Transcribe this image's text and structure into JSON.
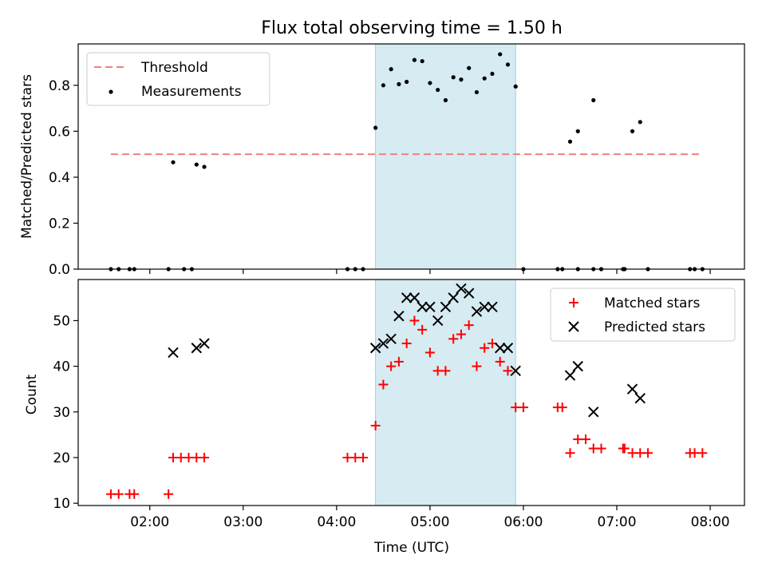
{
  "title": "Flux total observing time = 1.50 h",
  "chart_data": [
    {
      "type": "scatter",
      "ylabel": "Matched/Predicted stars",
      "xlabel": "",
      "xlim": [
        "01:14",
        "08:22"
      ],
      "ylim": [
        0,
        0.98
      ],
      "yticks": [
        "0.0",
        "0.2",
        "0.4",
        "0.6",
        "0.8"
      ],
      "highlight_span": [
        "04:25",
        "05:55"
      ],
      "threshold": {
        "name": "Threshold",
        "value": 0.5,
        "x_range": [
          "01:35",
          "07:55"
        ],
        "color": "#f08080"
      },
      "legend": [
        "Threshold",
        "Measurements"
      ],
      "legend_position": "top-left",
      "series": [
        {
          "name": "Measurements",
          "color": "#000000",
          "points": [
            [
              "01:35",
              0
            ],
            [
              "01:40",
              0
            ],
            [
              "01:47",
              0
            ],
            [
              "01:50",
              0
            ],
            [
              "02:12",
              0
            ],
            [
              "02:22",
              0
            ],
            [
              "02:27",
              0
            ],
            [
              "02:15",
              0.465
            ],
            [
              "02:30",
              0.455
            ],
            [
              "02:35",
              0.445
            ],
            [
              "04:07",
              0
            ],
            [
              "04:12",
              0
            ],
            [
              "04:17",
              0
            ],
            [
              "04:25",
              0.615
            ],
            [
              "04:30",
              0.8
            ],
            [
              "04:35",
              0.87
            ],
            [
              "04:40",
              0.805
            ],
            [
              "04:45",
              0.815
            ],
            [
              "04:50",
              0.91
            ],
            [
              "04:55",
              0.905
            ],
            [
              "05:00",
              0.81
            ],
            [
              "05:05",
              0.78
            ],
            [
              "05:10",
              0.735
            ],
            [
              "05:15",
              0.835
            ],
            [
              "05:20",
              0.825
            ],
            [
              "05:25",
              0.875
            ],
            [
              "05:30",
              0.77
            ],
            [
              "05:35",
              0.83
            ],
            [
              "05:40",
              0.85
            ],
            [
              "05:45",
              0.935
            ],
            [
              "05:50",
              0.89
            ],
            [
              "05:55",
              0.795
            ],
            [
              "06:00",
              0
            ],
            [
              "06:22",
              0
            ],
            [
              "06:25",
              0
            ],
            [
              "06:35",
              0
            ],
            [
              "06:45",
              0
            ],
            [
              "06:50",
              0
            ],
            [
              "07:04",
              0
            ],
            [
              "07:05",
              0
            ],
            [
              "07:20",
              0
            ],
            [
              "06:30",
              0.555
            ],
            [
              "06:35",
              0.6
            ],
            [
              "06:45",
              0.735
            ],
            [
              "07:10",
              0.6
            ],
            [
              "07:15",
              0.64
            ],
            [
              "07:47",
              0
            ],
            [
              "07:50",
              0
            ],
            [
              "07:55",
              0
            ]
          ]
        }
      ]
    },
    {
      "type": "scatter",
      "ylabel": "Count",
      "xlabel": "Time (UTC)",
      "xlim": [
        "01:14",
        "08:22"
      ],
      "ylim": [
        9.5,
        59
      ],
      "yticks": [
        "10",
        "20",
        "30",
        "40",
        "50"
      ],
      "xticks": [
        "02:00",
        "03:00",
        "04:00",
        "05:00",
        "06:00",
        "07:00",
        "08:00"
      ],
      "highlight_span": [
        "04:25",
        "05:55"
      ],
      "legend": [
        "Matched stars",
        "Predicted stars"
      ],
      "legend_position": "top-right",
      "series": [
        {
          "name": "Matched stars",
          "marker": "plus",
          "color": "#ff0000",
          "points": [
            [
              "01:35",
              12
            ],
            [
              "01:40",
              12
            ],
            [
              "01:47",
              12
            ],
            [
              "01:50",
              12
            ],
            [
              "02:12",
              12
            ],
            [
              "02:15",
              20
            ],
            [
              "02:20",
              20
            ],
            [
              "02:25",
              20
            ],
            [
              "02:30",
              20
            ],
            [
              "02:35",
              20
            ],
            [
              "04:07",
              20
            ],
            [
              "04:12",
              20
            ],
            [
              "04:17",
              20
            ],
            [
              "04:25",
              27
            ],
            [
              "04:30",
              36
            ],
            [
              "04:35",
              40
            ],
            [
              "04:40",
              41
            ],
            [
              "04:45",
              45
            ],
            [
              "04:50",
              50
            ],
            [
              "04:55",
              48
            ],
            [
              "05:00",
              43
            ],
            [
              "05:05",
              39
            ],
            [
              "05:10",
              39
            ],
            [
              "05:15",
              46
            ],
            [
              "05:20",
              47
            ],
            [
              "05:25",
              49
            ],
            [
              "05:30",
              40
            ],
            [
              "05:35",
              44
            ],
            [
              "05:40",
              45
            ],
            [
              "05:45",
              41
            ],
            [
              "05:50",
              39
            ],
            [
              "05:55",
              31
            ],
            [
              "06:00",
              31
            ],
            [
              "06:22",
              31
            ],
            [
              "06:25",
              31
            ],
            [
              "06:30",
              21
            ],
            [
              "06:35",
              24
            ],
            [
              "06:40",
              24
            ],
            [
              "06:45",
              22
            ],
            [
              "06:50",
              22
            ],
            [
              "07:04",
              22
            ],
            [
              "07:05",
              22
            ],
            [
              "07:10",
              21
            ],
            [
              "07:15",
              21
            ],
            [
              "07:20",
              21
            ],
            [
              "07:47",
              21
            ],
            [
              "07:50",
              21
            ],
            [
              "07:55",
              21
            ]
          ]
        },
        {
          "name": "Predicted stars",
          "marker": "x",
          "color": "#000000",
          "points": [
            [
              "02:15",
              43
            ],
            [
              "02:30",
              44
            ],
            [
              "02:35",
              45
            ],
            [
              "04:25",
              44
            ],
            [
              "04:30",
              45
            ],
            [
              "04:35",
              46
            ],
            [
              "04:40",
              51
            ],
            [
              "04:45",
              55
            ],
            [
              "04:50",
              55
            ],
            [
              "04:55",
              53
            ],
            [
              "05:00",
              53
            ],
            [
              "05:05",
              50
            ],
            [
              "05:10",
              53
            ],
            [
              "05:15",
              55
            ],
            [
              "05:20",
              57
            ],
            [
              "05:25",
              56
            ],
            [
              "05:30",
              52
            ],
            [
              "05:35",
              53
            ],
            [
              "05:40",
              53
            ],
            [
              "05:45",
              44
            ],
            [
              "05:50",
              44
            ],
            [
              "05:55",
              39
            ],
            [
              "06:30",
              38
            ],
            [
              "06:35",
              40
            ],
            [
              "06:45",
              30
            ],
            [
              "07:10",
              35
            ],
            [
              "07:15",
              33
            ]
          ]
        }
      ]
    }
  ]
}
